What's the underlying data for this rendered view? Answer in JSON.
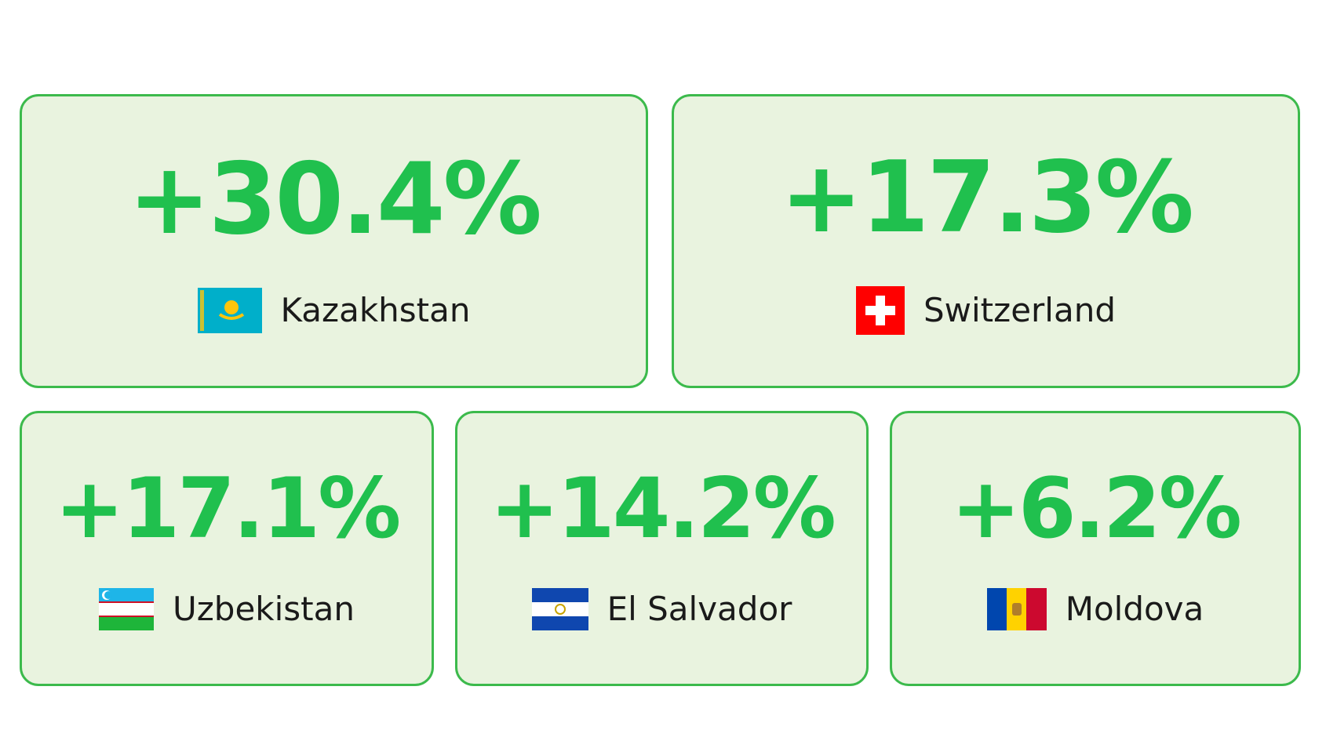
{
  "cards": [
    {
      "value": "+30.4%",
      "country": "Kazakhstan"
    },
    {
      "value": "+17.3%",
      "country": "Switzerland"
    },
    {
      "value": "+17.1%",
      "country": "Uzbekistan"
    },
    {
      "value": "+14.2%",
      "country": "El Salvador"
    },
    {
      "value": "+6.2%",
      "country": "Moldova"
    }
  ]
}
